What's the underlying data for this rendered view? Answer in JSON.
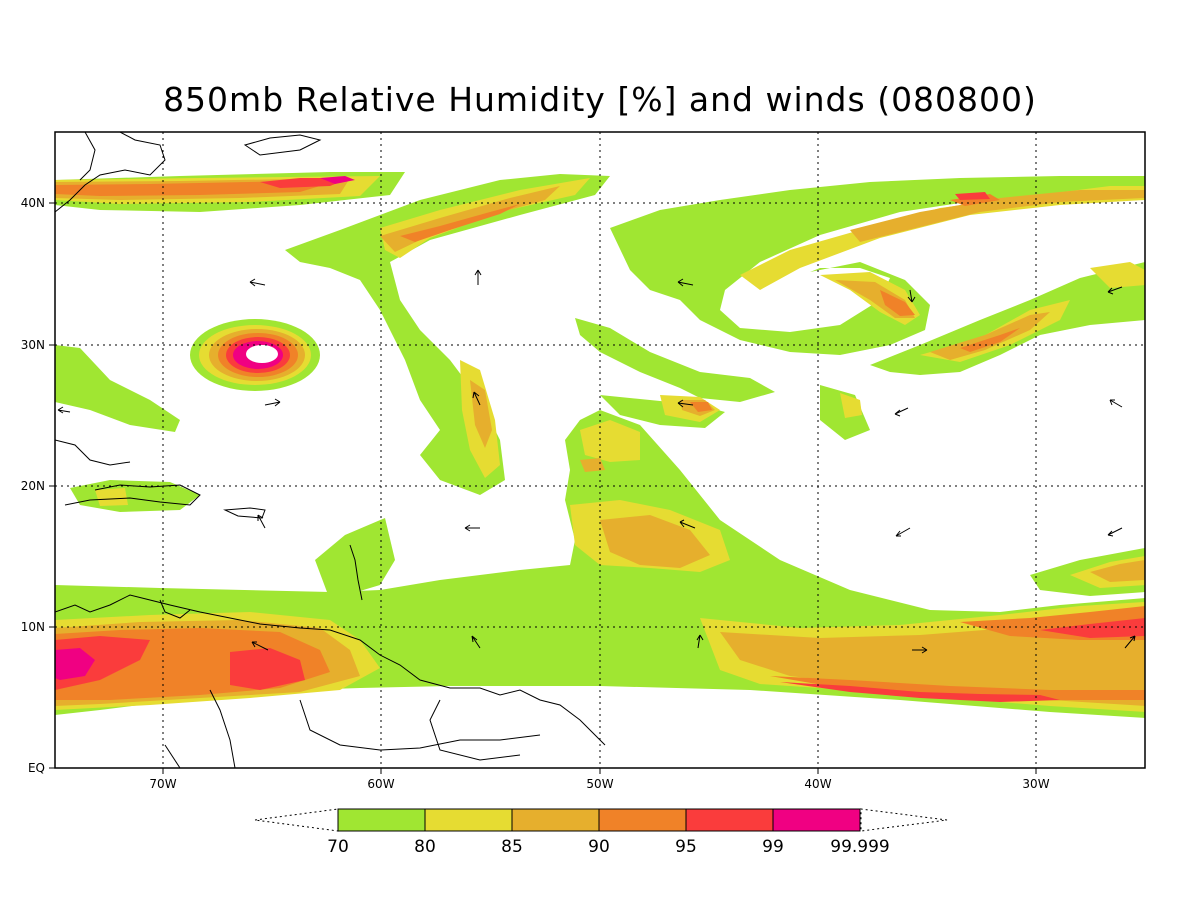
{
  "title": "850mb Relative Humidity [%] and winds (080800)",
  "axes": {
    "lon_labels": [
      "70W",
      "60W",
      "50W",
      "40W",
      "30W"
    ],
    "lat_labels": [
      "40N",
      "30N",
      "20N",
      "10N",
      "EQ"
    ]
  },
  "colorbar": {
    "levels": [
      "70",
      "80",
      "85",
      "90",
      "95",
      "99",
      "99.999"
    ],
    "colors": [
      "#a0e632",
      "#e6dc32",
      "#e6af2d",
      "#f08228",
      "#fa3c3c",
      "#f00082"
    ]
  },
  "colors": {
    "rh70": "#a0e632",
    "rh80": "#e6dc32",
    "rh85": "#e6af2d",
    "rh90": "#f08228",
    "rh95": "#fa3c3c",
    "rh99": "#f00082"
  }
}
